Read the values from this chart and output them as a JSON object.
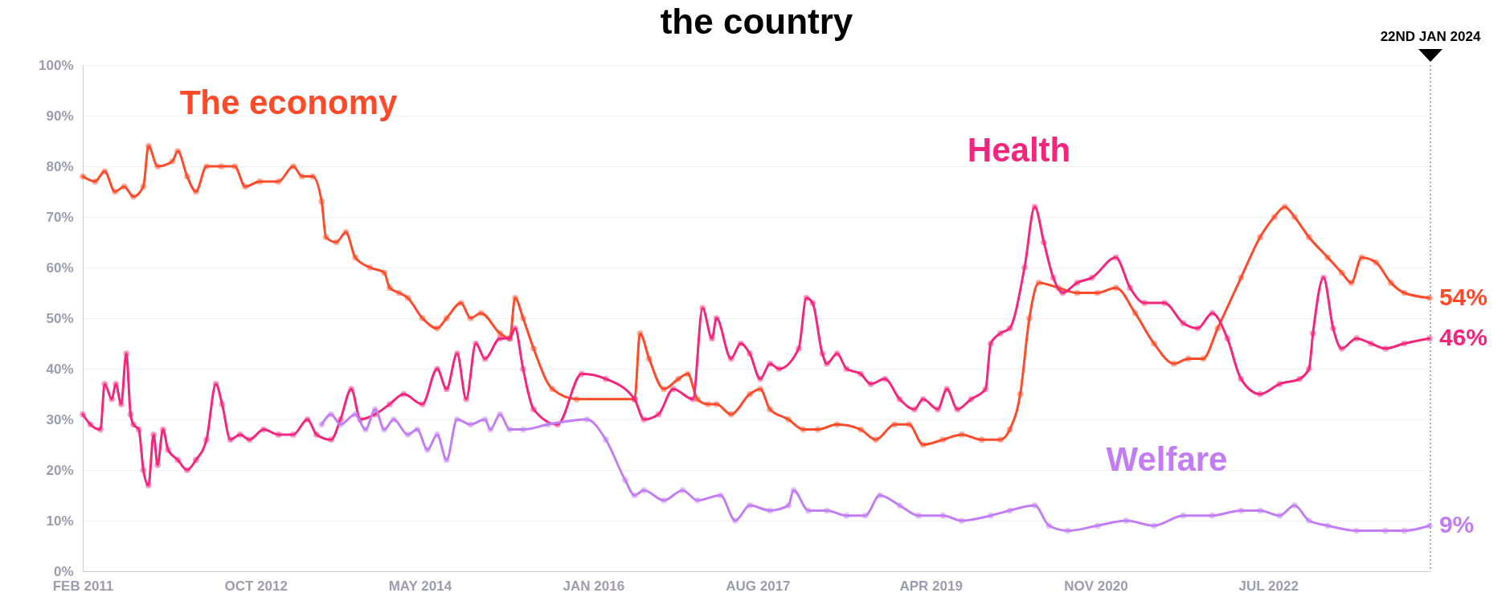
{
  "chart_data": {
    "type": "line",
    "title": "the country",
    "xlim": [
      "2011-02-01",
      "2024-01-22"
    ],
    "ylim": [
      0,
      100
    ],
    "xticks": [
      {
        "value": "2011-02-01",
        "label": "FEB 2011"
      },
      {
        "value": "2012-10-01",
        "label": "OCT 2012"
      },
      {
        "value": "2014-05-01",
        "label": "MAY 2014"
      },
      {
        "value": "2016-01-01",
        "label": "JAN 2016"
      },
      {
        "value": "2017-08-01",
        "label": "AUG 2017"
      },
      {
        "value": "2019-04-01",
        "label": "APR 2019"
      },
      {
        "value": "2020-11-01",
        "label": "NOV 2020"
      },
      {
        "value": "2022-07-01",
        "label": "JUL 2022"
      }
    ],
    "yticks": [
      {
        "value": 0,
        "label": "0%"
      },
      {
        "value": 10,
        "label": "10%"
      },
      {
        "value": 20,
        "label": "20%"
      },
      {
        "value": 30,
        "label": "30%"
      },
      {
        "value": 40,
        "label": "40%"
      },
      {
        "value": 50,
        "label": "50%"
      },
      {
        "value": 60,
        "label": "60%"
      },
      {
        "value": 70,
        "label": "70%"
      },
      {
        "value": 80,
        "label": "80%"
      },
      {
        "value": 90,
        "label": "90%"
      },
      {
        "value": 100,
        "label": "100%"
      }
    ],
    "grid": "y",
    "marker": "circle",
    "line_style": "solid",
    "series": [
      {
        "name": "The economy",
        "color": "#ff4a2a",
        "x": [
          "2011-02-01",
          "2011-03-16",
          "2011-04-19",
          "2011-05-25",
          "2011-06-27",
          "2011-07-29",
          "2011-09-02",
          "2011-09-20",
          "2011-10-22",
          "2011-12-13",
          "2012-01-01",
          "2012-02-03",
          "2012-03-05",
          "2012-04-11",
          "2012-06-02",
          "2012-07-19",
          "2012-08-25",
          "2012-10-15",
          "2012-12-20",
          "2013-02-10",
          "2013-03-13",
          "2013-04-19",
          "2013-05-21",
          "2013-06-05",
          "2013-07-11",
          "2013-08-14",
          "2013-09-16",
          "2013-11-07",
          "2013-12-27",
          "2014-01-15",
          "2014-02-17",
          "2014-03-20",
          "2014-05-10",
          "2014-07-01",
          "2014-08-03",
          "2014-09-23",
          "2014-10-26",
          "2014-12-02",
          "2015-02-07",
          "2015-03-13",
          "2015-04-01",
          "2015-04-29",
          "2015-06-05",
          "2015-08-10",
          "2015-11-03",
          "2016-05-25",
          "2016-06-13",
          "2016-07-15",
          "2016-09-05",
          "2016-10-26",
          "2016-11-28",
          "2017-01-01",
          "2017-02-07",
          "2017-03-09",
          "2017-04-29",
          "2017-07-04",
          "2017-08-10",
          "2017-09-13",
          "2017-11-17",
          "2018-01-08",
          "2018-02-28",
          "2018-05-07",
          "2018-07-29",
          "2018-09-20",
          "2018-11-25",
          "2019-01-15",
          "2019-03-05",
          "2019-05-14",
          "2019-07-19",
          "2019-09-27",
          "2019-12-02",
          "2020-01-04",
          "2020-02-10",
          "2020-03-13",
          "2020-04-15",
          "2020-06-23",
          "2020-08-28",
          "2020-11-07",
          "2021-01-11",
          "2021-03-20",
          "2021-05-25",
          "2021-08-03",
          "2021-09-23",
          "2021-11-14",
          "2022-01-04",
          "2022-03-27",
          "2022-06-02",
          "2022-07-22",
          "2022-08-28",
          "2022-10-01",
          "2022-11-21",
          "2023-01-26",
          "2023-03-16",
          "2023-04-19",
          "2023-05-25",
          "2023-07-15",
          "2023-09-05",
          "2023-10-22",
          "2024-01-19"
        ],
        "values": [
          78,
          77,
          79,
          75,
          76,
          74,
          76,
          84,
          80,
          81,
          83,
          78,
          75,
          80,
          80,
          80,
          76,
          77,
          77,
          80,
          78,
          78,
          73,
          66,
          65,
          67,
          62,
          60,
          59,
          56,
          55,
          54,
          50,
          48,
          50,
          53,
          50,
          51,
          47,
          46,
          54,
          50,
          44,
          36,
          34,
          34,
          47,
          42,
          36,
          38,
          39,
          34,
          33,
          33,
          31,
          35,
          36,
          32,
          30,
          28,
          28,
          29,
          28,
          26,
          29,
          29,
          25,
          26,
          27,
          26,
          26,
          28,
          35,
          50,
          57,
          56,
          55,
          55,
          56,
          51,
          45,
          41,
          42,
          42,
          48,
          58,
          66,
          70,
          72,
          70,
          66,
          62,
          59,
          57,
          62,
          61,
          57,
          55,
          54
        ]
      },
      {
        "name": "Health",
        "color": "#f5247c",
        "x": [
          "2011-02-01",
          "2011-02-28",
          "2011-04-04",
          "2011-04-19",
          "2011-05-14",
          "2011-05-28",
          "2011-06-16",
          "2011-07-04",
          "2011-07-19",
          "2011-07-29",
          "2011-08-17",
          "2011-09-02",
          "2011-09-20",
          "2011-10-08",
          "2011-10-22",
          "2011-11-10",
          "2011-11-28",
          "2012-01-01",
          "2012-02-03",
          "2012-03-05",
          "2012-04-11",
          "2012-05-14",
          "2012-06-05",
          "2012-07-04",
          "2012-08-07",
          "2012-09-09",
          "2012-10-29",
          "2012-12-20",
          "2013-02-10",
          "2013-04-01",
          "2013-05-03",
          "2013-06-23",
          "2013-07-26",
          "2013-09-02",
          "2013-10-04",
          "2013-11-25",
          "2014-01-15",
          "2014-03-05",
          "2014-05-10",
          "2014-07-01",
          "2014-08-03",
          "2014-09-09",
          "2014-10-11",
          "2014-11-14",
          "2014-12-16",
          "2015-02-07",
          "2015-03-13",
          "2015-04-01",
          "2015-04-29",
          "2015-06-05",
          "2015-08-28",
          "2015-11-21",
          "2016-02-14",
          "2016-05-25",
          "2016-06-27",
          "2016-08-17",
          "2016-10-08",
          "2016-12-16",
          "2017-01-19",
          "2017-02-21",
          "2017-03-09",
          "2017-04-29",
          "2017-06-02",
          "2017-07-04",
          "2017-08-10",
          "2017-09-13",
          "2017-10-15",
          "2017-12-23",
          "2018-01-19",
          "2018-02-10",
          "2018-03-16",
          "2018-04-01",
          "2018-05-07",
          "2018-06-09",
          "2018-07-29",
          "2018-09-02",
          "2018-10-22",
          "2018-12-13",
          "2019-02-03",
          "2019-03-05",
          "2019-04-26",
          "2019-05-28",
          "2019-07-04",
          "2019-08-21",
          "2019-10-11",
          "2019-10-29",
          "2019-12-02",
          "2020-01-04",
          "2020-02-25",
          "2020-04-01",
          "2020-05-03",
          "2020-06-05",
          "2020-07-08",
          "2020-08-28",
          "2020-10-19",
          "2021-01-11",
          "2021-03-02",
          "2021-04-22",
          "2021-07-01",
          "2021-09-05",
          "2021-10-26",
          "2021-12-16",
          "2022-02-07",
          "2022-03-27",
          "2022-06-02",
          "2022-08-10",
          "2022-10-19",
          "2022-11-21",
          "2022-12-05",
          "2023-01-11",
          "2023-02-14",
          "2023-03-16",
          "2023-05-07",
          "2023-06-27",
          "2023-08-17",
          "2023-10-22",
          "2024-01-19"
        ],
        "values": [
          31,
          29,
          28,
          37,
          34,
          37,
          33,
          43,
          31,
          29,
          28,
          20,
          17,
          27,
          21,
          28,
          24,
          22,
          20,
          22,
          26,
          37,
          33,
          26,
          27,
          26,
          28,
          27,
          27,
          30,
          27,
          26,
          30,
          36,
          30,
          31,
          33,
          35,
          33,
          40,
          36,
          43,
          34,
          45,
          42,
          46,
          46,
          48,
          40,
          32,
          29,
          39,
          38,
          34,
          30,
          31,
          36,
          34,
          52,
          46,
          50,
          42,
          45,
          43,
          38,
          41,
          40,
          44,
          54,
          53,
          43,
          41,
          43,
          40,
          39,
          37,
          38,
          34,
          32,
          34,
          32,
          36,
          32,
          34,
          36,
          45,
          47,
          48,
          60,
          72,
          65,
          58,
          55,
          57,
          58,
          62,
          56,
          53,
          53,
          49,
          48,
          51,
          46,
          38,
          35,
          37,
          38,
          40,
          47,
          58,
          48,
          44,
          46,
          45,
          44,
          45,
          46
        ]
      },
      {
        "name": "Welfare",
        "color": "#c27df5",
        "x": [
          "2013-05-21",
          "2013-06-23",
          "2013-07-26",
          "2013-09-16",
          "2013-10-22",
          "2013-11-25",
          "2013-12-27",
          "2014-01-29",
          "2014-03-20",
          "2014-04-22",
          "2014-05-28",
          "2014-07-01",
          "2014-08-03",
          "2014-09-09",
          "2014-10-26",
          "2014-12-16",
          "2015-01-04",
          "2015-02-07",
          "2015-03-13",
          "2015-04-29",
          "2015-07-26",
          "2015-12-09",
          "2016-02-14",
          "2016-04-22",
          "2016-05-25",
          "2016-06-27",
          "2016-09-05",
          "2016-11-10",
          "2017-01-01",
          "2017-03-23",
          "2017-05-14",
          "2017-07-04",
          "2017-09-13",
          "2017-11-17",
          "2017-12-05",
          "2018-01-26",
          "2018-04-01",
          "2018-06-09",
          "2018-08-14",
          "2018-10-04",
          "2018-12-13",
          "2019-02-17",
          "2019-05-14",
          "2019-07-19",
          "2019-10-29",
          "2020-01-04",
          "2020-04-01",
          "2020-05-21",
          "2020-07-26",
          "2020-11-07",
          "2021-02-17",
          "2021-05-25",
          "2021-09-05",
          "2021-12-16",
          "2022-03-27",
          "2022-06-02",
          "2022-08-10",
          "2022-10-01",
          "2022-11-21",
          "2023-01-26",
          "2023-05-07",
          "2023-08-17",
          "2023-10-22",
          "2024-01-19"
        ],
        "values": [
          29,
          31,
          29,
          31,
          28,
          32,
          28,
          30,
          27,
          28,
          24,
          27,
          22,
          30,
          29,
          30,
          28,
          31,
          28,
          28,
          29,
          30,
          26,
          18,
          15,
          16,
          14,
          16,
          14,
          15,
          10,
          13,
          12,
          13,
          16,
          12,
          12,
          11,
          11,
          15,
          13,
          11,
          11,
          10,
          11,
          12,
          13,
          9,
          8,
          9,
          10,
          9,
          11,
          11,
          12,
          12,
          11,
          13,
          10,
          9,
          8,
          8,
          8,
          9
        ]
      }
    ],
    "ref_lines": [
      {
        "axis": "x",
        "value": "2024-01-22",
        "label": "22ND JAN 2024",
        "color": "#8a8fa0",
        "line_style": "dotted"
      }
    ],
    "annotations": [
      {
        "text": "54%",
        "x": "2024-01-19",
        "y": 54
      },
      {
        "text": "46%",
        "x": "2024-01-19",
        "y": 46
      },
      {
        "text": "9%",
        "x": "2024-01-19",
        "y": 9
      }
    ]
  }
}
